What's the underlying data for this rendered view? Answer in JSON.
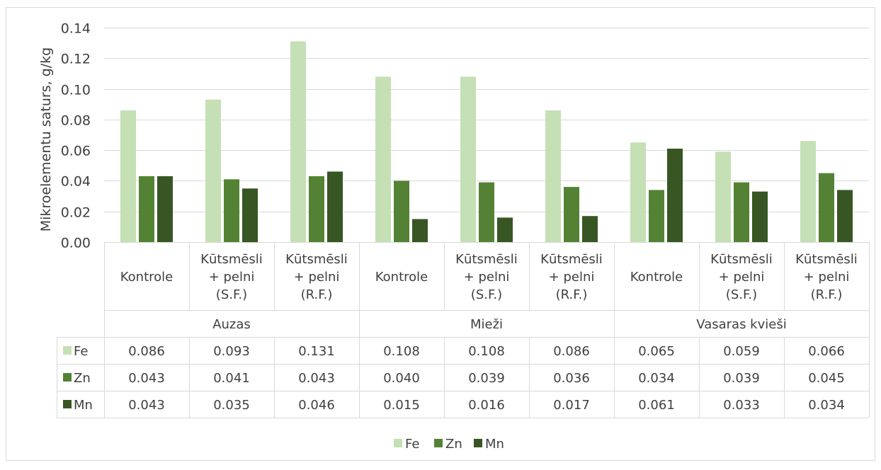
{
  "chart_data": {
    "type": "bar",
    "title": "",
    "xlabel": "",
    "ylabel": "Mikroelementu saturs, g/kg",
    "ylim": [
      0,
      0.14
    ],
    "yticks": [
      "0.00",
      "0.02",
      "0.04",
      "0.06",
      "0.08",
      "0.10",
      "0.12",
      "0.14"
    ],
    "ytick_values": [
      0,
      0.02,
      0.04,
      0.06,
      0.08,
      0.1,
      0.12,
      0.14
    ],
    "grid": true,
    "legend_position": "bottom",
    "groups": [
      {
        "label": "Auzas",
        "span": 3
      },
      {
        "label": "Mieži",
        "span": 3
      },
      {
        "label": "Vasaras kvieši",
        "span": 3
      }
    ],
    "categories": [
      [
        "Kontrole"
      ],
      [
        "Kūtsmēsli",
        "+ pelni",
        "(S.F.)"
      ],
      [
        "Kūtsmēsli",
        "+ pelni",
        "(R.F.)"
      ],
      [
        "Kontrole"
      ],
      [
        "Kūtsmēsli",
        "+ pelni",
        "(S.F.)"
      ],
      [
        "Kūtsmēsli",
        "+ pelni",
        "(R.F.)"
      ],
      [
        "Kontrole"
      ],
      [
        "Kūtsmēsli",
        "+ pelni",
        "(S.F.)"
      ],
      [
        "Kūtsmēsli",
        "+ pelni",
        "(R.F.)"
      ]
    ],
    "series": [
      {
        "name": "Fe",
        "color": "#c5e0b4",
        "values": [
          0.086,
          0.093,
          0.131,
          0.108,
          0.108,
          0.086,
          0.065,
          0.059,
          0.066
        ],
        "labels": [
          "0.086",
          "0.093",
          "0.131",
          "0.108",
          "0.108",
          "0.086",
          "0.065",
          "0.059",
          "0.066"
        ]
      },
      {
        "name": "Zn",
        "color": "#548235",
        "values": [
          0.043,
          0.041,
          0.043,
          0.04,
          0.039,
          0.036,
          0.034,
          0.039,
          0.045
        ],
        "labels": [
          "0.043",
          "0.041",
          "0.043",
          "0.040",
          "0.039",
          "0.036",
          "0.034",
          "0.039",
          "0.045"
        ]
      },
      {
        "name": "Mn",
        "color": "#375623",
        "values": [
          0.043,
          0.035,
          0.046,
          0.015,
          0.016,
          0.017,
          0.061,
          0.033,
          0.034
        ],
        "labels": [
          "0.043",
          "0.035",
          "0.046",
          "0.015",
          "0.016",
          "0.017",
          "0.061",
          "0.033",
          "0.034"
        ]
      }
    ]
  }
}
